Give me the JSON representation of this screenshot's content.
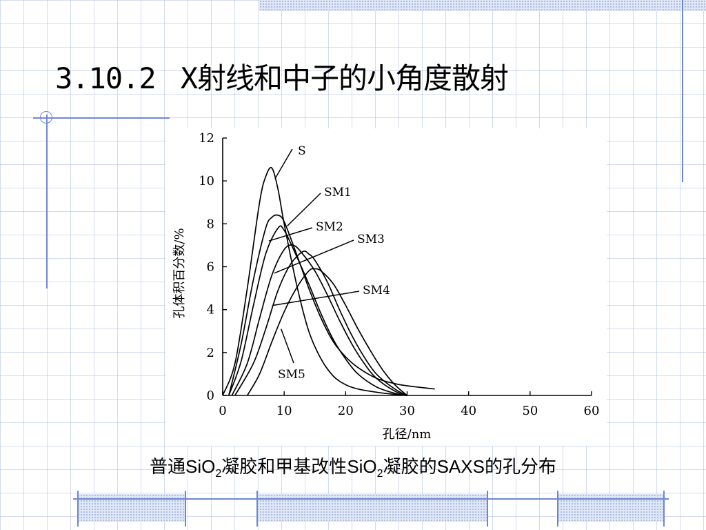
{
  "slide": {
    "title_number": "3.10.2",
    "title_text": "X射线和中子的小角度散射",
    "caption": {
      "part1": "普通",
      "sio2_a": "SiO",
      "sub_a": "2",
      "part2": "凝胶和甲基改性",
      "sio2_b": "SiO",
      "sub_b": "2",
      "part3": "凝胶的",
      "saxs": "SAXS",
      "part4": "的孔分布"
    }
  },
  "chart_data": {
    "type": "line",
    "xlabel": "孔径/nm",
    "ylabel": "孔体积百分数/%",
    "xlim": [
      0,
      60
    ],
    "ylim": [
      0,
      12
    ],
    "xticks": [
      0,
      10,
      20,
      30,
      40,
      50,
      60
    ],
    "yticks": [
      0,
      2,
      4,
      6,
      8,
      10,
      12
    ],
    "grid": false,
    "series": [
      {
        "name": "S",
        "x": [
          0,
          2,
          4,
          6,
          7,
          8,
          9,
          10,
          12,
          14,
          16,
          18,
          20,
          22,
          25,
          28,
          30
        ],
        "y": [
          0,
          1.5,
          5,
          9,
          10.2,
          10.6,
          9.6,
          8,
          5.2,
          3,
          1.7,
          0.9,
          0.5,
          0.3,
          0.15,
          0.05,
          0
        ]
      },
      {
        "name": "SM1",
        "x": [
          1,
          3,
          5,
          7,
          8,
          9,
          10,
          12,
          14,
          16,
          18,
          20,
          22,
          25,
          28,
          30,
          32,
          34.5
        ],
        "y": [
          0,
          2.4,
          5.4,
          7.8,
          8.3,
          8.4,
          8.1,
          6.6,
          5,
          3.6,
          2.5,
          1.8,
          1.3,
          0.8,
          0.55,
          0.45,
          0.38,
          0.3
        ]
      },
      {
        "name": "SM2",
        "x": [
          1,
          3,
          5,
          7,
          9,
          10,
          12,
          14,
          16,
          18,
          20,
          22,
          25,
          28,
          30
        ],
        "y": [
          0,
          1.6,
          4.2,
          6.6,
          7.8,
          7.7,
          6.5,
          5.2,
          3.8,
          2.6,
          1.7,
          1,
          0.4,
          0.1,
          0
        ]
      },
      {
        "name": "SM3",
        "x": [
          1.5,
          4,
          6,
          8,
          10,
          11.5,
          13,
          15,
          17,
          19,
          21,
          23,
          25,
          28,
          30
        ],
        "y": [
          0,
          1.5,
          3.6,
          5.6,
          6.8,
          7,
          6.6,
          5.8,
          4.7,
          3.5,
          2.4,
          1.5,
          0.8,
          0.2,
          0
        ]
      },
      {
        "name": "SM4",
        "x": [
          2,
          5,
          7,
          9,
          11,
          13,
          14,
          15,
          17,
          19,
          21,
          23,
          25,
          28,
          30
        ],
        "y": [
          0,
          1.5,
          3.1,
          4.9,
          6.1,
          6.7,
          6.6,
          6.3,
          5.3,
          4,
          2.8,
          1.8,
          1,
          0.3,
          0
        ]
      },
      {
        "name": "SM5",
        "x": [
          4,
          6,
          8,
          10,
          12,
          14,
          15,
          16,
          18,
          20,
          22,
          24,
          26,
          28,
          30
        ],
        "y": [
          0,
          1,
          2.5,
          3.9,
          5,
          5.8,
          5.9,
          5.8,
          5.2,
          4.2,
          3.1,
          2.1,
          1.2,
          0.5,
          0
        ]
      }
    ]
  }
}
